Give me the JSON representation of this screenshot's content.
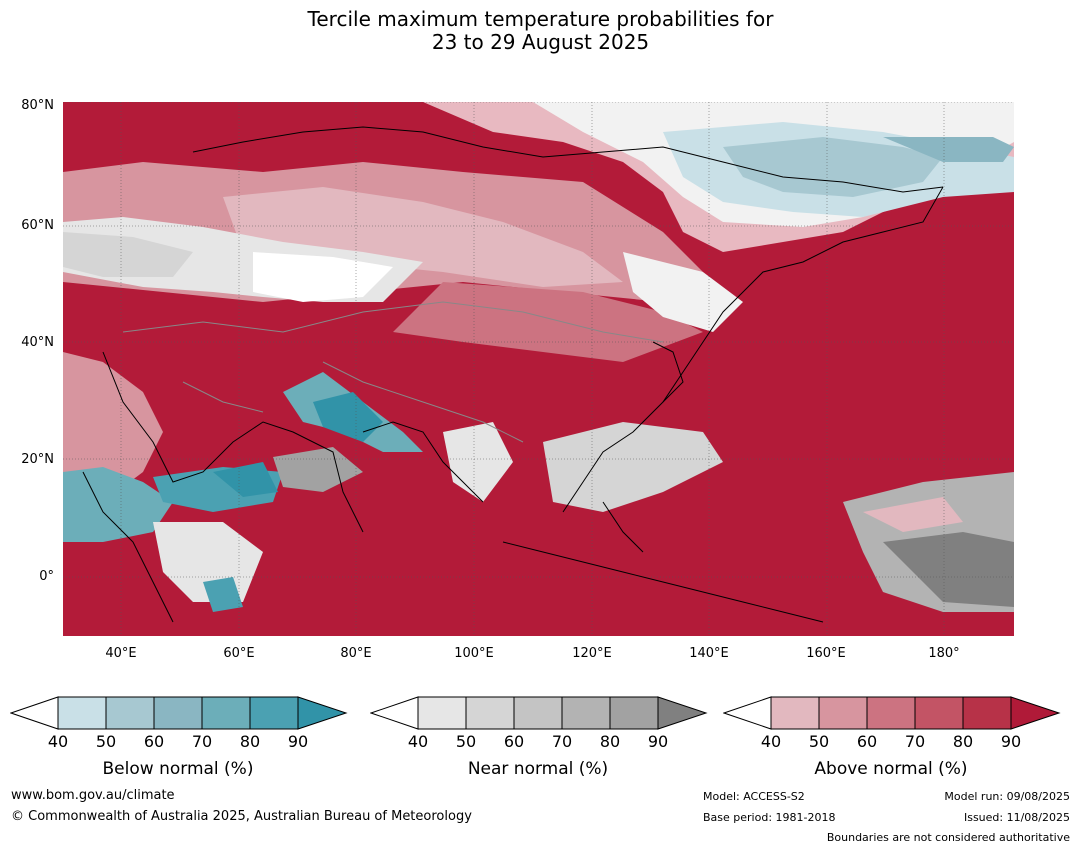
{
  "title_line1": "Tercile maximum temperature probabilities for",
  "title_line2": "23 to 29 August 2025",
  "map": {
    "lat_labels": [
      "80°N",
      "60°N",
      "40°N",
      "20°N",
      "0°"
    ],
    "lon_labels": [
      "40°E",
      "60°E",
      "80°E",
      "100°E",
      "120°E",
      "140°E",
      "160°E",
      "180°"
    ],
    "lat_range": [
      -10,
      80
    ],
    "lon_range": [
      30,
      192
    ]
  },
  "colorbars": [
    {
      "id": "below",
      "title": "Below normal (%)",
      "ticks": [
        "40",
        "50",
        "60",
        "70",
        "80",
        "90"
      ],
      "colors": [
        "#ffffff",
        "#c9e0e7",
        "#a7c8d1",
        "#8ab6c2",
        "#6caeb9",
        "#4ba1b2",
        "#3193a8"
      ]
    },
    {
      "id": "near",
      "title": "Near normal (%)",
      "ticks": [
        "40",
        "50",
        "60",
        "70",
        "80",
        "90"
      ],
      "colors": [
        "#ffffff",
        "#e6e6e6",
        "#d5d5d5",
        "#c4c4c4",
        "#b3b3b3",
        "#a2a2a2",
        "#808080"
      ]
    },
    {
      "id": "above",
      "title": "Above normal (%)",
      "ticks": [
        "40",
        "50",
        "60",
        "70",
        "80",
        "90"
      ],
      "colors": [
        "#ffffff",
        "#e2b8bf",
        "#d7959f",
        "#cc7381",
        "#c35465",
        "#b73248",
        "#b01a38"
      ]
    }
  ],
  "footer": {
    "url": "www.bom.gov.au/climate",
    "copyright": "© Commonwealth of Australia 2025, Australian Bureau of Meteorology",
    "model": "Model: ACCESS-S2",
    "base_period": "Base period: 1981-2018",
    "model_run": "Model run: 09/08/2025",
    "issued": "Issued: 11/08/2025",
    "disclaimer": "Boundaries are not considered authoritative"
  }
}
